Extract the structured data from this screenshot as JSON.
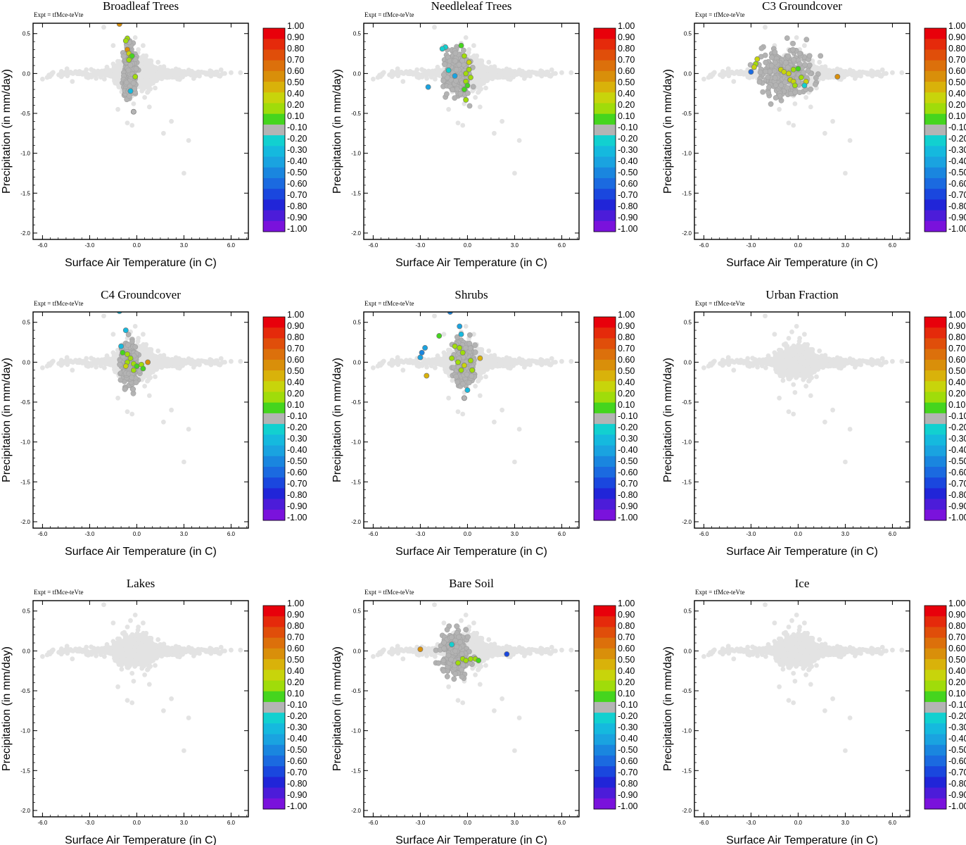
{
  "chart_data": {
    "type": "scatter",
    "layout": "3x3 grid of scatter panels",
    "experiment_label": "Expt = tfMce-teVte",
    "xlabel": "Surface Air Temperature (in C)",
    "ylabel": "Precipitation (in mm/day)",
    "xlim": [
      -6.6,
      7.1
    ],
    "ylim": [
      -2.08,
      0.63
    ],
    "xticks": [
      "-6.0",
      "-3.0",
      "0.0",
      "3.0",
      "6.0"
    ],
    "xtick_values": [
      -6,
      -3,
      0,
      3,
      6
    ],
    "yticks": [
      "0.5",
      "0.0",
      "-0.5",
      "-1.0",
      "-1.5",
      "-2.0"
    ],
    "ytick_values": [
      0.5,
      0.0,
      -0.5,
      -1.0,
      -1.5,
      -2.0
    ],
    "colorbar": {
      "labels": [
        "1.00",
        "0.90",
        "0.80",
        "0.70",
        "0.60",
        "0.50",
        "0.40",
        "0.20",
        "0.10",
        "-0.10",
        "-0.20",
        "-0.30",
        "-0.40",
        "-0.50",
        "-0.60",
        "-0.70",
        "-0.80",
        "-0.90",
        "-1.00"
      ],
      "colors": [
        "#e8000b",
        "#e52a0b",
        "#e04e0a",
        "#dc700b",
        "#d98f0a",
        "#d9b20a",
        "#c8d40b",
        "#a0dc0a",
        "#45d51e",
        "#b4b4b4",
        "#12d0d0",
        "#15b9de",
        "#1aa3e0",
        "#1a86df",
        "#1b6ae0",
        "#1a47de",
        "#2125d8",
        "#4c1cd9",
        "#7a12dc"
      ],
      "neutral_bin_index": 9
    },
    "background_points": [
      [
        -6.0,
        -0.07
      ],
      [
        -5.7,
        -0.05
      ],
      [
        -4.8,
        -0.04
      ],
      [
        -4.3,
        0.01
      ],
      [
        -4.1,
        -0.1
      ],
      [
        -3.7,
        0.02
      ],
      [
        -3.4,
        0.01
      ],
      [
        -2.9,
        0.05
      ],
      [
        -2.6,
        -0.02
      ],
      [
        -2.2,
        0.03
      ],
      [
        -1.9,
        0.08
      ],
      [
        -1.7,
        -0.03
      ],
      [
        -1.5,
        0.12
      ],
      [
        -1.3,
        -0.06
      ],
      [
        -1.1,
        0.15
      ],
      [
        -0.9,
        0.22
      ],
      [
        -0.8,
        -0.12
      ],
      [
        -0.6,
        0.3
      ],
      [
        -0.5,
        -0.2
      ],
      [
        -0.4,
        0.38
      ],
      [
        -0.3,
        -0.28
      ],
      [
        -0.2,
        0.1
      ],
      [
        -0.1,
        0.45
      ],
      [
        0.0,
        -0.05
      ],
      [
        0.1,
        0.3
      ],
      [
        0.2,
        -0.15
      ],
      [
        0.3,
        0.2
      ],
      [
        0.5,
        -0.3
      ],
      [
        0.7,
        0.1
      ],
      [
        0.9,
        -0.1
      ],
      [
        1.1,
        0.05
      ],
      [
        1.3,
        -0.05
      ],
      [
        1.5,
        0.08
      ],
      [
        1.8,
        -0.02
      ],
      [
        2.1,
        0.03
      ],
      [
        2.4,
        0.0
      ],
      [
        2.7,
        0.04
      ],
      [
        3.0,
        -0.02
      ],
      [
        3.3,
        0.03
      ],
      [
        3.6,
        -0.01
      ],
      [
        3.9,
        0.02
      ],
      [
        4.3,
        0.01
      ],
      [
        4.7,
        -0.01
      ],
      [
        5.1,
        0.02
      ],
      [
        5.6,
        0.0
      ],
      [
        6.0,
        0.01
      ],
      [
        6.6,
        0.01
      ],
      [
        -1.2,
        -0.45
      ],
      [
        -0.6,
        -0.62
      ],
      [
        -0.3,
        -0.65
      ],
      [
        0.8,
        -0.42
      ],
      [
        1.7,
        -0.75
      ],
      [
        2.2,
        -0.6
      ],
      [
        3.3,
        -0.84
      ],
      [
        3.0,
        -1.25
      ],
      [
        -2.1,
        0.58
      ],
      [
        -1.5,
        0.35
      ],
      [
        -0.7,
        0.2
      ],
      [
        -0.2,
        -0.38
      ],
      [
        0.4,
        0.35
      ]
    ],
    "panels": [
      {
        "title": "Broadleaf Trees",
        "gray_region": [
          -0.45,
          0.03,
          0.35,
          0.36
        ],
        "points": [
          [
            -1.1,
            0.62,
            0.62
          ],
          [
            -0.6,
            0.44,
            0.2
          ],
          [
            -0.7,
            0.41,
            0.15
          ],
          [
            -0.6,
            0.3,
            0.55
          ],
          [
            -0.5,
            0.25,
            0.35
          ],
          [
            -0.4,
            0.2,
            0.18
          ],
          [
            -0.3,
            0.22,
            0.12
          ],
          [
            -0.5,
            0.17,
            0.15
          ],
          [
            -0.1,
            -0.04,
            0.15
          ],
          [
            -0.4,
            -0.22,
            -0.3
          ],
          [
            -0.2,
            -0.48,
            -0.1
          ]
        ]
      },
      {
        "title": "Needleleaf Trees",
        "gray_region": [
          -0.7,
          0.0,
          0.6,
          0.3
        ],
        "points": [
          [
            -1.4,
            0.33,
            -0.25
          ],
          [
            -1.6,
            0.31,
            -0.25
          ],
          [
            -2.5,
            -0.17,
            -0.45
          ],
          [
            -1.2,
            0.04,
            -0.25
          ],
          [
            -0.8,
            -0.03,
            -0.45
          ],
          [
            -0.4,
            0.35,
            0.12
          ],
          [
            -0.2,
            0.22,
            0.25
          ],
          [
            0.1,
            0.14,
            0.3
          ],
          [
            0.1,
            0.05,
            0.2
          ],
          [
            -0.1,
            0.0,
            0.15
          ],
          [
            0.2,
            -0.05,
            0.2
          ],
          [
            -0.1,
            -0.1,
            0.15
          ],
          [
            0.0,
            -0.15,
            0.12
          ],
          [
            -0.2,
            -0.2,
            0.12
          ],
          [
            -0.1,
            -0.33,
            0.15
          ]
        ]
      },
      {
        "title": "C3 Groundcover",
        "gray_region": [
          -0.8,
          0.02,
          1.4,
          0.35
        ],
        "points": [
          [
            -3.0,
            0.02,
            -0.65
          ],
          [
            -2.6,
            0.18,
            0.3
          ],
          [
            -2.7,
            0.12,
            0.25
          ],
          [
            -2.8,
            0.08,
            0.3
          ],
          [
            -1.1,
            0.05,
            0.35
          ],
          [
            -0.9,
            0.02,
            0.4
          ],
          [
            -0.6,
            0.0,
            0.3
          ],
          [
            -0.3,
            0.05,
            0.18
          ],
          [
            0.0,
            0.06,
            0.12
          ],
          [
            -0.5,
            -0.08,
            0.35
          ],
          [
            -0.3,
            -0.1,
            0.4
          ],
          [
            0.2,
            -0.05,
            0.25
          ],
          [
            0.5,
            -0.1,
            0.3
          ],
          [
            -0.2,
            -0.15,
            0.25
          ],
          [
            0.4,
            -0.15,
            -0.2
          ],
          [
            2.5,
            -0.04,
            0.6
          ]
        ]
      },
      {
        "title": "C4 Groundcover",
        "gray_region": [
          -0.45,
          -0.02,
          0.45,
          0.3
        ],
        "points": [
          [
            -1.1,
            0.64,
            -0.3
          ],
          [
            -0.7,
            0.4,
            -0.3
          ],
          [
            -1.0,
            0.2,
            -0.3
          ],
          [
            -0.9,
            0.12,
            0.12
          ],
          [
            -0.6,
            0.1,
            0.2
          ],
          [
            -0.4,
            0.05,
            0.15
          ],
          [
            -0.6,
            0.0,
            0.2
          ],
          [
            -0.2,
            -0.02,
            0.15
          ],
          [
            0.0,
            -0.05,
            0.12
          ],
          [
            0.3,
            -0.03,
            0.2
          ],
          [
            -0.2,
            -0.1,
            0.15
          ],
          [
            0.4,
            -0.08,
            0.12
          ],
          [
            0.7,
            0.0,
            0.55
          ],
          [
            -0.7,
            -0.05,
            0.3
          ]
        ]
      },
      {
        "title": "Shrubs",
        "gray_region": [
          -0.2,
          0.0,
          0.5,
          0.3
        ],
        "points": [
          [
            -1.1,
            0.63,
            -0.55
          ],
          [
            -0.5,
            0.45,
            -0.45
          ],
          [
            -0.4,
            0.35,
            -0.35
          ],
          [
            -1.8,
            0.33,
            0.12
          ],
          [
            -2.7,
            0.18,
            -0.45
          ],
          [
            -2.9,
            0.12,
            -0.5
          ],
          [
            -3.0,
            0.06,
            -0.45
          ],
          [
            -2.6,
            -0.17,
            0.45
          ],
          [
            -0.8,
            0.2,
            0.15
          ],
          [
            -0.5,
            0.18,
            0.2
          ],
          [
            -0.3,
            0.12,
            0.25
          ],
          [
            -1.0,
            0.05,
            0.2
          ],
          [
            -0.6,
            0.0,
            0.25
          ],
          [
            -0.2,
            -0.04,
            0.3
          ],
          [
            0.2,
            0.02,
            0.2
          ],
          [
            0.8,
            0.05,
            0.45
          ],
          [
            -0.4,
            -0.1,
            0.18
          ],
          [
            0.0,
            -0.35,
            -0.3
          ],
          [
            -0.2,
            -0.45,
            -0.1
          ],
          [
            0.3,
            -0.1,
            0.25
          ]
        ]
      },
      {
        "title": "Urban Fraction",
        "gray_region": null,
        "points": []
      },
      {
        "title": "Lakes",
        "gray_region": null,
        "points": []
      },
      {
        "title": "Bare Soil",
        "gray_region": [
          -0.8,
          -0.02,
          0.75,
          0.3
        ],
        "points": [
          [
            -3.0,
            0.02,
            0.55
          ],
          [
            -1.0,
            0.08,
            -0.25
          ],
          [
            -0.3,
            -0.1,
            0.2
          ],
          [
            -0.1,
            -0.12,
            0.15
          ],
          [
            0.2,
            -0.1,
            0.25
          ],
          [
            0.5,
            -0.1,
            0.15
          ],
          [
            0.7,
            -0.12,
            0.12
          ],
          [
            2.5,
            -0.04,
            -0.7
          ],
          [
            -0.6,
            -0.15,
            0.15
          ]
        ]
      },
      {
        "title": "Ice",
        "gray_region": null,
        "points": []
      }
    ]
  }
}
